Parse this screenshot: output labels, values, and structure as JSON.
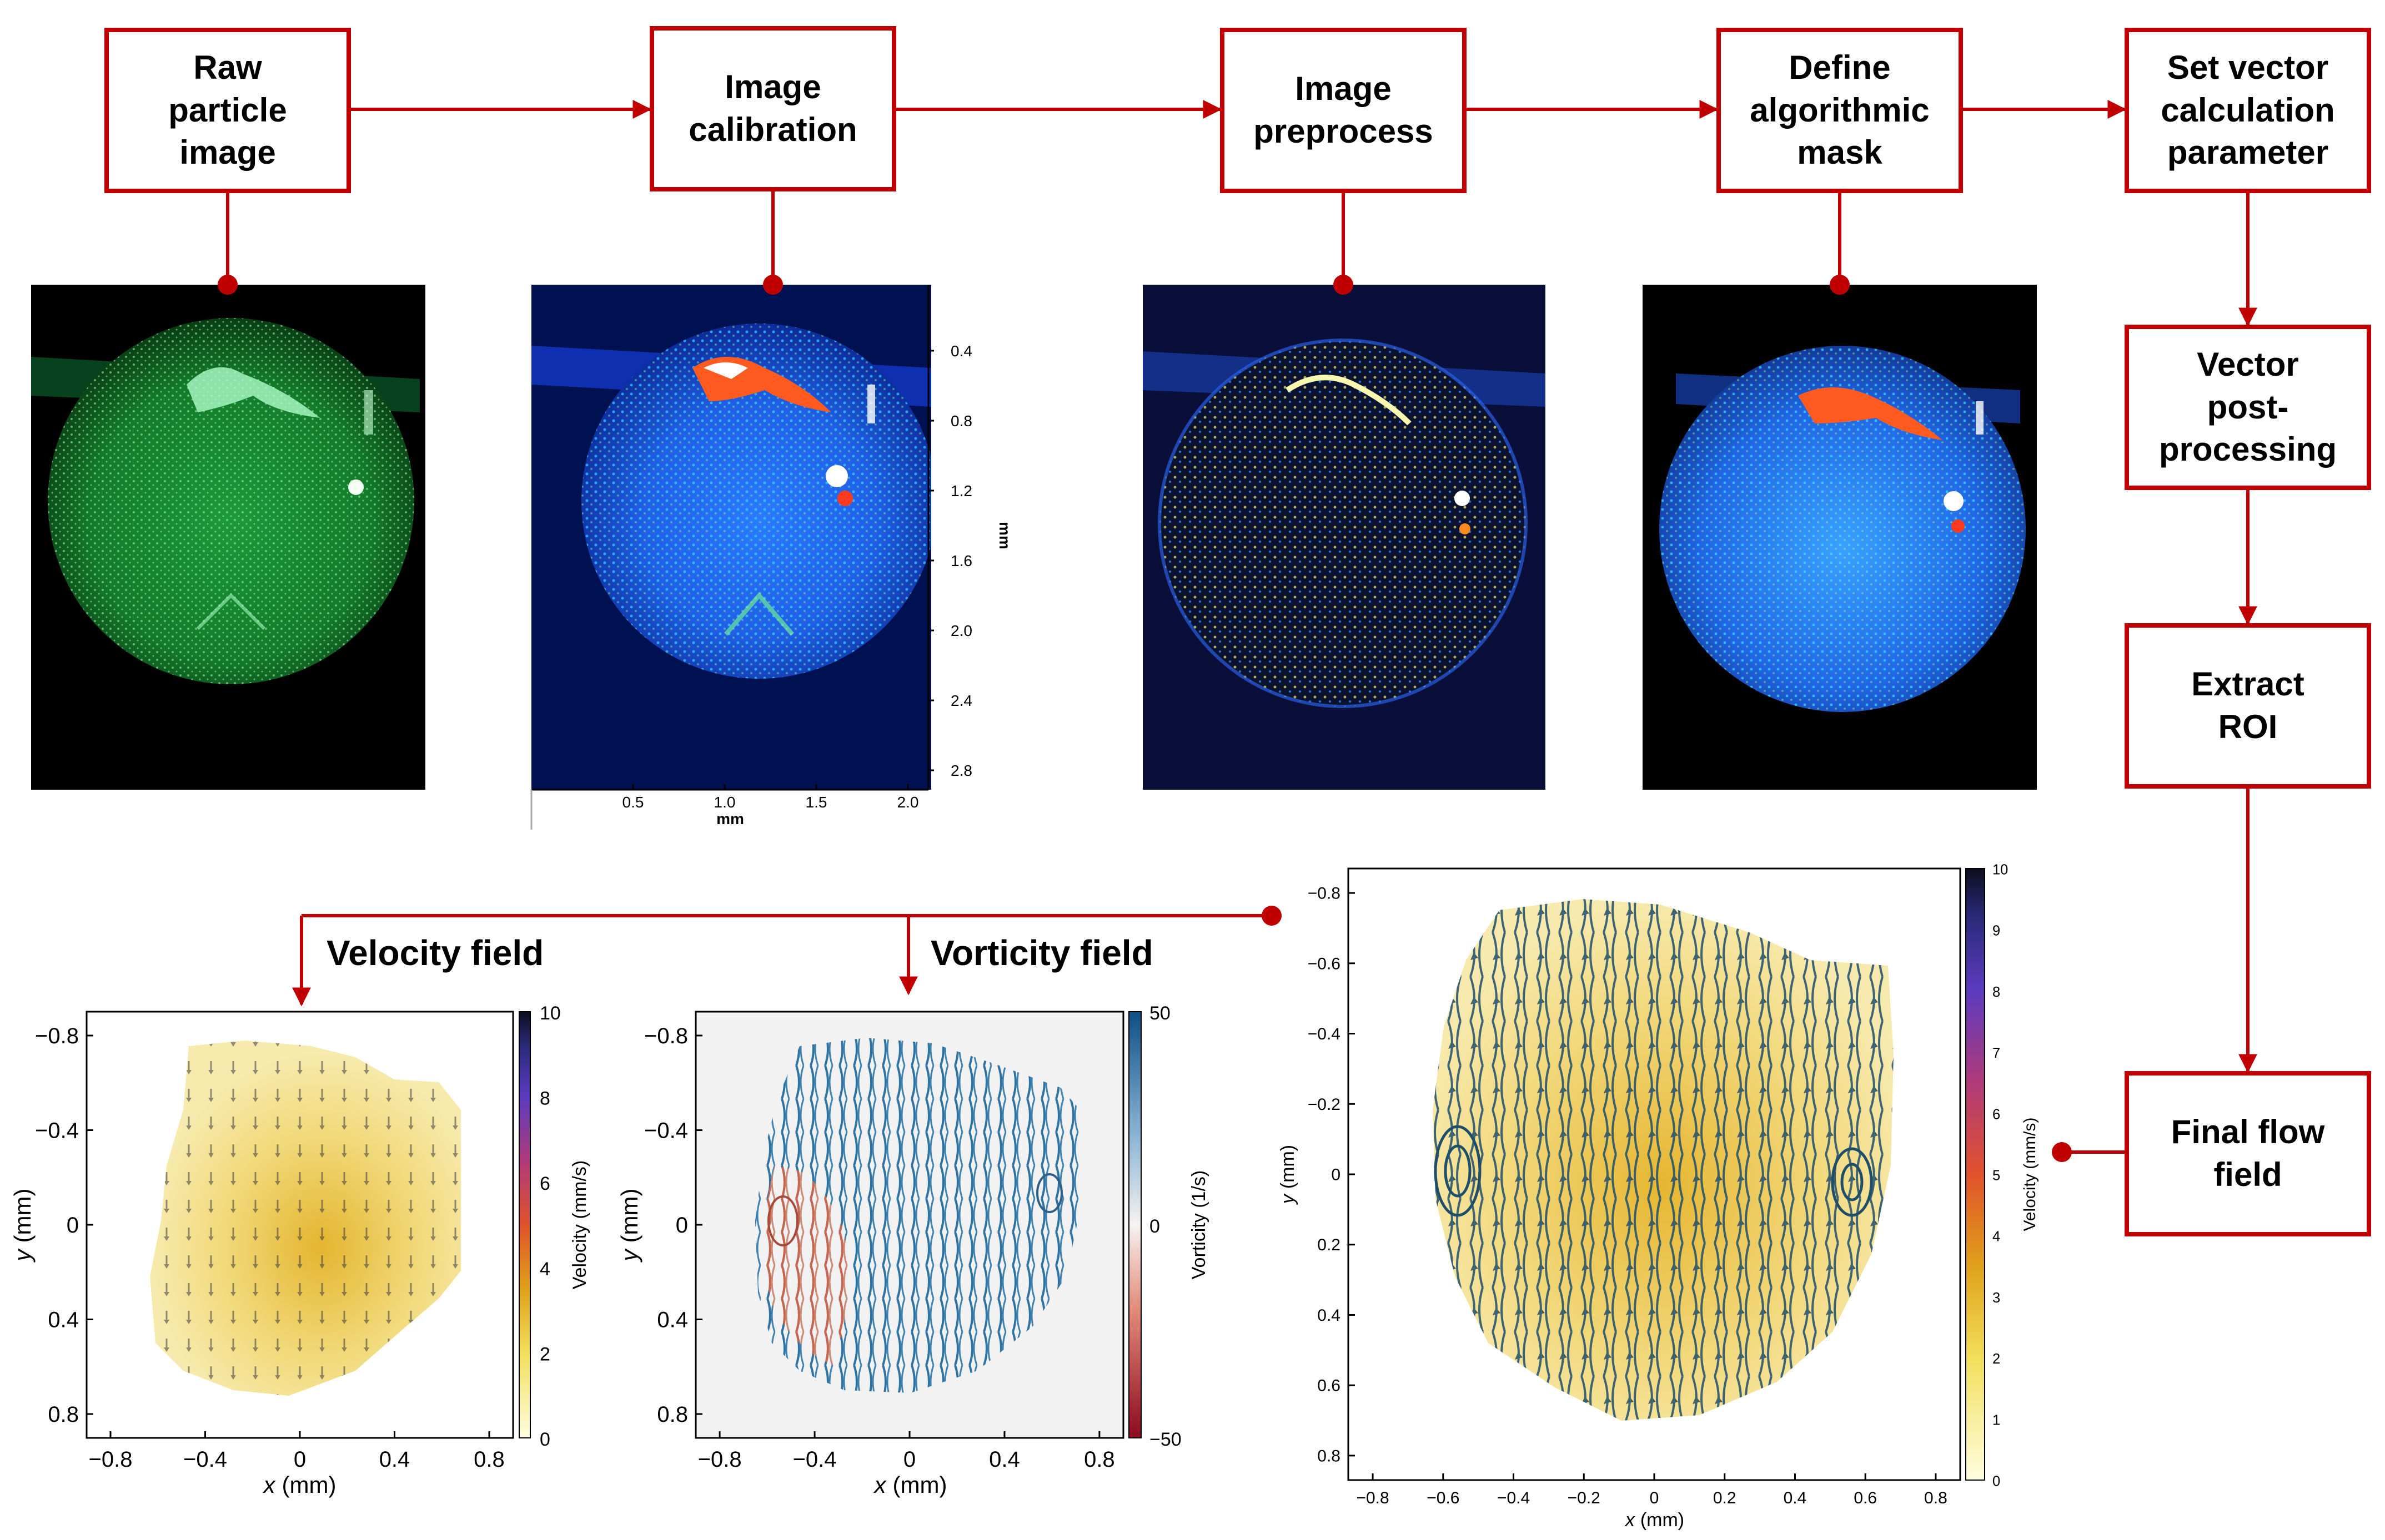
{
  "boxes": {
    "raw": "Raw\nparticle\nimage",
    "calib": "Image\ncalibration",
    "preproc": "Image\npreprocess",
    "mask": "Define\nalgorithmic\nmask",
    "vector": "Set vector\ncalculation\nparameter",
    "post": "Vector\npost-\nprocessing",
    "roi": "Extract\nROI",
    "final": "Final flow\nfield"
  },
  "labels": {
    "velocity": "Velocity field",
    "vorticity": "Vorticity field"
  },
  "calib_axes": {
    "y_ticks": [
      "0.4",
      "0.8",
      "1.2",
      "1.6",
      "2.0",
      "2.4",
      "2.8"
    ],
    "x_ticks": [
      "0.5",
      "1.0",
      "1.5",
      "2.0"
    ],
    "x_label": "mm",
    "y_label": "mm"
  },
  "chart_data": [
    {
      "type": "heatmap",
      "title": "Velocity field",
      "xlabel_var": "x",
      "xlabel_unit": "(mm)",
      "ylabel_var": "y",
      "ylabel_unit": "(mm)",
      "x_ticks": [
        "−0.8",
        "−0.4",
        "0",
        "0.4",
        "0.8"
      ],
      "y_ticks": [
        "−0.8",
        "−0.4",
        "0",
        "0.4",
        "0.8"
      ],
      "colorbar_label": "Velocity (mm/s)",
      "colorbar_ticks": [
        "0",
        "2",
        "4",
        "6",
        "8",
        "10"
      ],
      "clim": [
        0,
        10
      ]
    },
    {
      "type": "heatmap",
      "title": "Vorticity field",
      "xlabel_var": "x",
      "xlabel_unit": "(mm)",
      "ylabel_var": "y",
      "ylabel_unit": "(mm)",
      "x_ticks": [
        "−0.8",
        "−0.4",
        "0",
        "0.4",
        "0.8"
      ],
      "y_ticks": [
        "−0.8",
        "−0.4",
        "0",
        "0.4",
        "0.8"
      ],
      "colorbar_label": "Vorticity (1/s)",
      "colorbar_ticks": [
        "50",
        "0",
        "−50"
      ],
      "clim": [
        -50,
        50
      ]
    },
    {
      "type": "heatmap",
      "title": "Final flow field",
      "xlabel_var": "x",
      "xlabel_unit": "(mm)",
      "ylabel_var": "y",
      "ylabel_unit": "(mm)",
      "x_ticks": [
        "−0.8",
        "−0.6",
        "−0.4",
        "−0.2",
        "0",
        "0.2",
        "0.4",
        "0.6",
        "0.8"
      ],
      "y_ticks": [
        "−0.8",
        "−0.6",
        "−0.4",
        "−0.2",
        "0",
        "0.2",
        "0.4",
        "0.6",
        "0.8"
      ],
      "colorbar_label": "Velocity (mm/s)",
      "colorbar_ticks": [
        "0",
        "1",
        "2",
        "3",
        "4",
        "5",
        "6",
        "7",
        "8",
        "9",
        "10"
      ],
      "clim": [
        0,
        10
      ]
    }
  ]
}
